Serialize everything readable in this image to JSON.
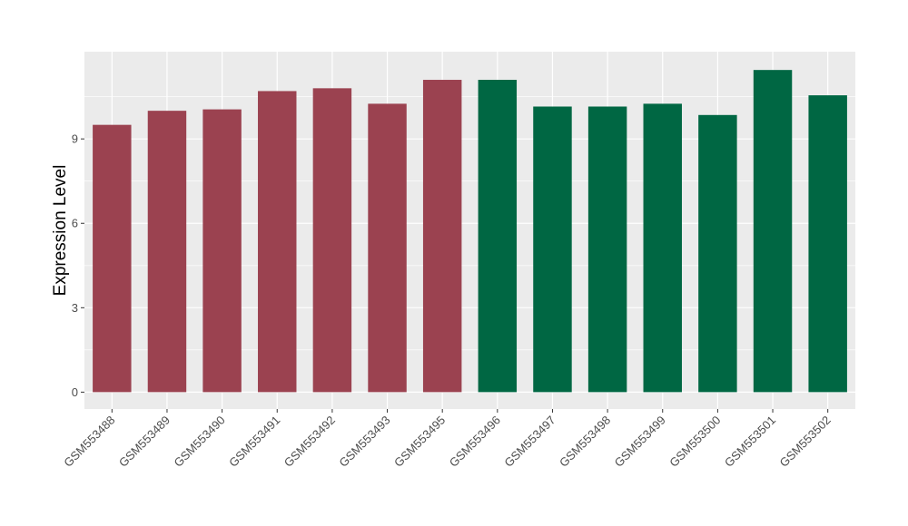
{
  "chart_data": {
    "type": "bar",
    "title": "",
    "xlabel": "",
    "ylabel": "Expression Level",
    "ylim": [
      -0.6,
      12.1
    ],
    "yticks": [
      0,
      3,
      6,
      9
    ],
    "grid": true,
    "legend": "none",
    "categories": [
      "GSM553488",
      "GSM553489",
      "GSM553490",
      "GSM553491",
      "GSM553492",
      "GSM553493",
      "GSM553495",
      "GSM553496",
      "GSM553497",
      "GSM553498",
      "GSM553499",
      "GSM553500",
      "GSM553501",
      "GSM553502"
    ],
    "values": [
      9.5,
      10.0,
      10.05,
      10.7,
      10.8,
      10.25,
      11.1,
      11.1,
      10.15,
      10.15,
      10.25,
      9.85,
      11.45,
      10.55
    ],
    "colors": [
      "#9b4250",
      "#9b4250",
      "#9b4250",
      "#9b4250",
      "#9b4250",
      "#9b4250",
      "#9b4250",
      "#006743",
      "#006743",
      "#006743",
      "#006743",
      "#006743",
      "#006743",
      "#006743"
    ],
    "panel_background": "#ebebeb",
    "grid_color": "#ffffff"
  }
}
